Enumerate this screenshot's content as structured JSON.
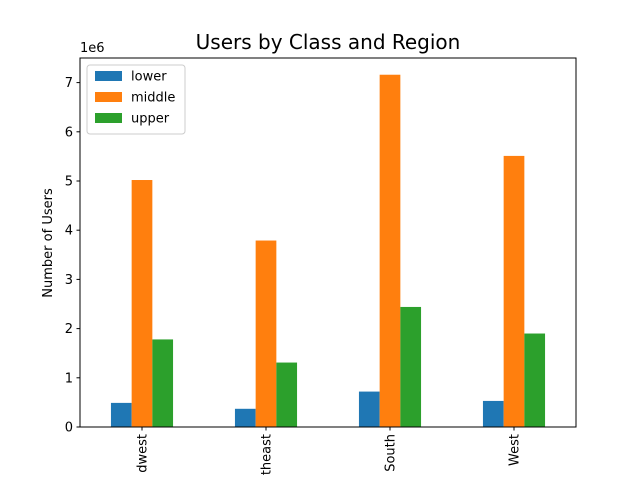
{
  "chart_data": {
    "type": "bar",
    "title": "Users by Class and Region",
    "xlabel": "",
    "ylabel": "Number of Users",
    "y_multiplier": "1e6",
    "ylim": [
      0,
      7.5
    ],
    "yticks": [
      "0",
      "1",
      "2",
      "3",
      "4",
      "5",
      "6",
      "7"
    ],
    "categories": [
      "Midwest",
      "Northeast",
      "South",
      "West"
    ],
    "category_tick_labels": [
      "dwest",
      "theast",
      "South",
      "West"
    ],
    "series": [
      {
        "name": "lower",
        "color": "#1f77b4",
        "values": [
          0.49,
          0.37,
          0.72,
          0.53
        ]
      },
      {
        "name": "middle",
        "color": "#ff7f0e",
        "values": [
          5.02,
          3.79,
          7.16,
          5.51
        ]
      },
      {
        "name": "upper",
        "color": "#2ca02c",
        "values": [
          1.78,
          1.31,
          2.44,
          1.9
        ]
      }
    ],
    "legend_position": "top-left",
    "grid": false
  }
}
